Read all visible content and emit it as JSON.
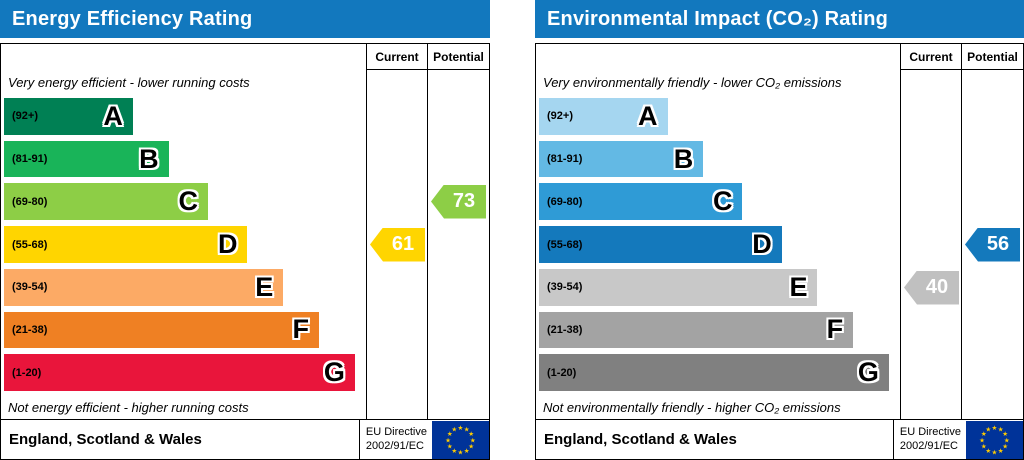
{
  "theme": {
    "header_color": "#1278be",
    "border_color": "#000000"
  },
  "chart_data": [
    {
      "type": "bar",
      "title": "Energy Efficiency Rating",
      "orientation": "horizontal",
      "categories": [
        "A",
        "B",
        "C",
        "D",
        "E",
        "F",
        "G"
      ],
      "ranges": [
        "(92+)",
        "(81-91)",
        "(69-80)",
        "(55-68)",
        "(39-54)",
        "(21-38)",
        "(1-20)"
      ],
      "bar_lengths_pct": [
        36,
        46,
        57,
        68,
        78,
        88,
        98
      ],
      "current": 61,
      "potential": 73,
      "current_band": "D",
      "potential_band": "C"
    },
    {
      "type": "bar",
      "title": "Environmental Impact (CO₂) Rating",
      "orientation": "horizontal",
      "categories": [
        "A",
        "B",
        "C",
        "D",
        "E",
        "F",
        "G"
      ],
      "ranges": [
        "(92+)",
        "(81-91)",
        "(69-80)",
        "(55-68)",
        "(39-54)",
        "(21-38)",
        "(1-20)"
      ],
      "bar_lengths_pct": [
        36,
        46,
        57,
        68,
        78,
        88,
        98
      ],
      "current": 40,
      "potential": 56,
      "current_band": "E",
      "potential_band": "D"
    }
  ],
  "panels": [
    {
      "title": "Energy Efficiency Rating",
      "top_note": "Very energy efficient - lower running costs",
      "bottom_note": "Not energy efficient - higher running costs",
      "columns": {
        "current": "Current",
        "potential": "Potential"
      },
      "bands": [
        {
          "range": "(92+)",
          "letter": "A",
          "color": "#008054",
          "width_pct": 36
        },
        {
          "range": "(81-91)",
          "letter": "B",
          "color": "#19b459",
          "width_pct": 46
        },
        {
          "range": "(69-80)",
          "letter": "C",
          "color": "#8dce46",
          "width_pct": 57
        },
        {
          "range": "(55-68)",
          "letter": "D",
          "color": "#ffd500",
          "width_pct": 68
        },
        {
          "range": "(39-54)",
          "letter": "E",
          "color": "#fcaa65",
          "width_pct": 78
        },
        {
          "range": "(21-38)",
          "letter": "F",
          "color": "#ef8023",
          "width_pct": 88
        },
        {
          "range": "(1-20)",
          "letter": "G",
          "color": "#e9153b",
          "width_pct": 98
        }
      ],
      "current": {
        "value": 61,
        "band_index": 3,
        "color": "#ffd500"
      },
      "potential": {
        "value": 73,
        "band_index": 2,
        "color": "#8dce46"
      },
      "footer": {
        "region": "England, Scotland & Wales",
        "directive_line1": "EU Directive",
        "directive_line2": "2002/91/EC"
      }
    },
    {
      "title": "Environmental Impact (CO₂) Rating",
      "top_note": "Very environmentally friendly - lower CO₂ emissions",
      "bottom_note": "Not environmentally friendly - higher CO₂ emissions",
      "columns": {
        "current": "Current",
        "potential": "Potential"
      },
      "bands": [
        {
          "range": "(92+)",
          "letter": "A",
          "color": "#a5d6f0",
          "width_pct": 36
        },
        {
          "range": "(81-91)",
          "letter": "B",
          "color": "#63b9e4",
          "width_pct": 46
        },
        {
          "range": "(69-80)",
          "letter": "C",
          "color": "#2f9bd6",
          "width_pct": 57
        },
        {
          "range": "(55-68)",
          "letter": "D",
          "color": "#1479bc",
          "width_pct": 68
        },
        {
          "range": "(39-54)",
          "letter": "E",
          "color": "#c8c8c8",
          "width_pct": 78
        },
        {
          "range": "(21-38)",
          "letter": "F",
          "color": "#a3a3a3",
          "width_pct": 88
        },
        {
          "range": "(1-20)",
          "letter": "G",
          "color": "#808080",
          "width_pct": 98
        }
      ],
      "current": {
        "value": 40,
        "band_index": 4,
        "color": "#c0c0c0"
      },
      "potential": {
        "value": 56,
        "band_index": 3,
        "color": "#1479bc"
      },
      "footer": {
        "region": "England, Scotland & Wales",
        "directive_line1": "EU Directive",
        "directive_line2": "2002/91/EC"
      }
    }
  ],
  "eu_flag": {
    "background": "#003399",
    "star_color": "#ffcc00",
    "star_count": 12
  }
}
